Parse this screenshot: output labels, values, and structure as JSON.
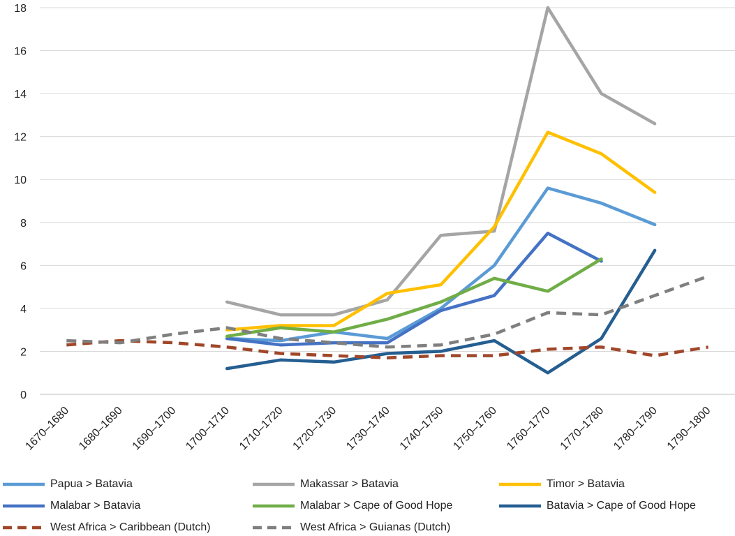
{
  "chart_data": {
    "type": "line",
    "categories": [
      "1670–1680",
      "1680–1690",
      "1690–1700",
      "1700–1710",
      "1710–1720",
      "1720–1730",
      "1730–1740",
      "1740–1750",
      "1750–1760",
      "1760–1770",
      "1770–1780",
      "1780–1790",
      "1790–1800"
    ],
    "ylim": [
      0,
      18
    ],
    "yticks": [
      "0",
      "2",
      "4",
      "6",
      "8",
      "10",
      "12",
      "14",
      "16",
      "18"
    ],
    "grid": true,
    "legend_position": "bottom",
    "series": [
      {
        "name": "Papua > Batavia",
        "color": "#5b9bd5",
        "dashed": false,
        "values": [
          null,
          null,
          null,
          2.6,
          2.5,
          2.9,
          2.6,
          4.0,
          6.0,
          9.6,
          8.9,
          7.9,
          null
        ]
      },
      {
        "name": "Makassar > Batavia",
        "color": "#a5a5a5",
        "dashed": false,
        "values": [
          null,
          null,
          null,
          4.3,
          3.7,
          3.7,
          4.4,
          7.4,
          7.6,
          18.0,
          14.0,
          12.6,
          null
        ]
      },
      {
        "name": "Timor > Batavia",
        "color": "#ffc000",
        "dashed": false,
        "values": [
          null,
          null,
          null,
          3.0,
          3.2,
          3.2,
          4.7,
          5.1,
          7.8,
          12.2,
          11.2,
          9.4,
          null
        ]
      },
      {
        "name": "Malabar > Batavia",
        "color": "#4472c4",
        "dashed": false,
        "values": [
          null,
          null,
          null,
          2.6,
          2.3,
          2.4,
          2.4,
          3.9,
          4.6,
          7.5,
          6.2,
          null,
          null
        ]
      },
      {
        "name": "Malabar > Cape of Good Hope",
        "color": "#70ad47",
        "dashed": false,
        "values": [
          null,
          null,
          null,
          2.7,
          3.1,
          2.9,
          3.5,
          4.3,
          5.4,
          4.8,
          6.3,
          null,
          null
        ]
      },
      {
        "name": "Batavia > Cape of Good Hope",
        "color": "#255e91",
        "dashed": false,
        "values": [
          null,
          null,
          null,
          1.2,
          1.6,
          1.5,
          1.9,
          2.0,
          2.5,
          1.0,
          2.6,
          6.7,
          null
        ]
      },
      {
        "name": "West Africa > Caribbean (Dutch)",
        "color": "#a0472a",
        "dashed": true,
        "values": [
          2.3,
          2.5,
          2.4,
          2.2,
          1.9,
          1.8,
          1.7,
          1.8,
          1.8,
          2.1,
          2.2,
          1.8,
          2.2
        ]
      },
      {
        "name": "West Africa > Guianas (Dutch)",
        "color": "#7f7f7f",
        "dashed": true,
        "values": [
          2.5,
          2.4,
          2.8,
          3.1,
          2.6,
          2.4,
          2.2,
          2.3,
          2.8,
          3.8,
          3.7,
          4.6,
          5.5
        ]
      }
    ]
  }
}
